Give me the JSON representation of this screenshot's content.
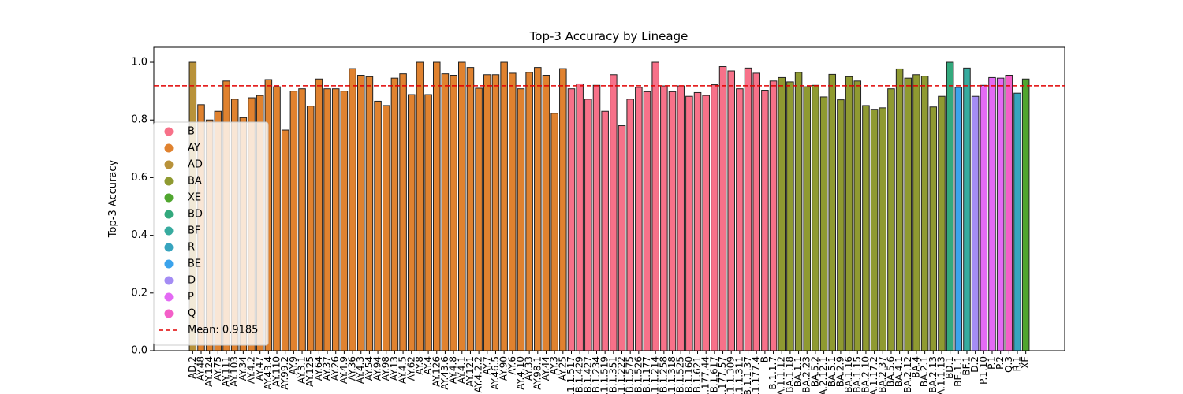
{
  "chart_data": {
    "type": "bar",
    "title": "Top-3 Accuracy by Lineage",
    "ylabel": "Top-3 Accuracy",
    "categories": [
      "AD.2",
      "AY.48",
      "AY.124",
      "AY.75",
      "AY.111",
      "AY.103",
      "AY.34",
      "AY.4.2",
      "AY.47",
      "AY.43.4",
      "AY.110",
      "AY.99.2",
      "AY.9",
      "AY.3.1",
      "AY.125",
      "AY.64",
      "AY.37",
      "AY.26",
      "AY.4.9",
      "AY.36",
      "AY.4.3",
      "AY.54",
      "AY.94",
      "AY.98",
      "AY.13",
      "AY.4.5",
      "AY.62",
      "AY.8",
      "AY.4",
      "AY.126",
      "AY.43.6",
      "AY.4.8",
      "AY.4.1",
      "AY.121",
      "AY.4.2.2",
      "AY.7",
      "AY.46.5",
      "AY.90",
      "AY.6",
      "AY.4.10",
      "AY.33",
      "AY.98.1",
      "AY.44",
      "AY.3",
      "AY.25",
      "B.1.1.517",
      "B.1.429",
      "B.1.427",
      "B.1.234",
      "B.1.1.519",
      "B.1.351",
      "B.1.1.222",
      "B.1.575",
      "B.1.526",
      "B.1.177",
      "B.1.1.214",
      "B.1.258",
      "B.1.1.318",
      "B.1.525",
      "B.1.160",
      "B.1.621",
      "B.1.177.44",
      "B.1.617",
      "B.1.177.57",
      "B.1.1.309",
      "B.1.1.311",
      "B.1.1.37",
      "B.1.177.4",
      "B",
      "B.1.1.7",
      "BA.1.1.12",
      "BA.1.18",
      "BA.1.1",
      "BA.2.23",
      "BA.5.2",
      "BA.2.12.1",
      "BA.5.1",
      "BA.2.9",
      "BA.1.16",
      "BA.1.15",
      "BA.2.10",
      "BA.1.17.2",
      "BA.2.37",
      "BA.5.6",
      "BA.4.1",
      "BA.2.12",
      "BA.4",
      "BA.2.1",
      "BA.2.13",
      "BA.1.1.13",
      "BD.1",
      "BE.1.1",
      "BF.1",
      "D.2",
      "P.1.10",
      "P.1",
      "P.2",
      "Q.3",
      "R.1",
      "XE"
    ],
    "values": [
      1.0,
      0.853,
      0.8,
      0.83,
      0.935,
      0.872,
      0.808,
      0.877,
      0.885,
      0.94,
      0.915,
      0.765,
      0.9,
      0.908,
      0.848,
      0.942,
      0.908,
      0.908,
      0.9,
      0.978,
      0.955,
      0.95,
      0.865,
      0.85,
      0.945,
      0.96,
      0.888,
      1.0,
      0.888,
      1.0,
      0.96,
      0.955,
      1.0,
      0.982,
      0.91,
      0.957,
      0.957,
      1.0,
      0.962,
      0.908,
      0.965,
      0.982,
      0.955,
      0.823,
      0.978,
      0.908,
      0.925,
      0.872,
      0.92,
      0.83,
      0.957,
      0.78,
      0.872,
      0.913,
      0.898,
      1.0,
      0.918,
      0.898,
      0.918,
      0.882,
      0.895,
      0.885,
      0.922,
      0.985,
      0.97,
      0.908,
      0.98,
      0.962,
      0.903,
      0.935,
      0.947,
      0.932,
      0.965,
      0.915,
      0.92,
      0.88,
      0.958,
      0.87,
      0.95,
      0.935,
      0.85,
      0.837,
      0.842,
      0.908,
      0.977,
      0.945,
      0.957,
      0.952,
      0.845,
      0.882,
      1.0,
      0.913,
      0.98,
      0.882,
      0.92,
      0.947,
      0.945,
      0.955,
      0.893,
      0.942
    ],
    "bar_colors": [
      "#b8923a",
      "#e0822f",
      "#e0822f",
      "#e0822f",
      "#e0822f",
      "#e0822f",
      "#e0822f",
      "#e0822f",
      "#e0822f",
      "#e0822f",
      "#e0822f",
      "#e0822f",
      "#e0822f",
      "#e0822f",
      "#e0822f",
      "#e0822f",
      "#e0822f",
      "#e0822f",
      "#e0822f",
      "#e0822f",
      "#e0822f",
      "#e0822f",
      "#e0822f",
      "#e0822f",
      "#e0822f",
      "#e0822f",
      "#e0822f",
      "#e0822f",
      "#e0822f",
      "#e0822f",
      "#e0822f",
      "#e0822f",
      "#e0822f",
      "#e0822f",
      "#e0822f",
      "#e0822f",
      "#e0822f",
      "#e0822f",
      "#e0822f",
      "#e0822f",
      "#e0822f",
      "#e0822f",
      "#e0822f",
      "#e0822f",
      "#e0822f",
      "#f77189",
      "#f77189",
      "#f77189",
      "#f77189",
      "#f77189",
      "#f77189",
      "#f77189",
      "#f77189",
      "#f77189",
      "#f77189",
      "#f77189",
      "#f77189",
      "#f77189",
      "#f77189",
      "#f77189",
      "#f77189",
      "#f77189",
      "#f77189",
      "#f77189",
      "#f77189",
      "#f77189",
      "#f77189",
      "#f77189",
      "#f77189",
      "#f77189",
      "#8f9a31",
      "#8f9a31",
      "#8f9a31",
      "#8f9a31",
      "#8f9a31",
      "#8f9a31",
      "#8f9a31",
      "#8f9a31",
      "#8f9a31",
      "#8f9a31",
      "#8f9a31",
      "#8f9a31",
      "#8f9a31",
      "#8f9a31",
      "#8f9a31",
      "#8f9a31",
      "#8f9a31",
      "#8f9a31",
      "#8f9a31",
      "#8f9a31",
      "#33a97d",
      "#3ba3ec",
      "#37ab9f",
      "#a48cf4",
      "#e36af4",
      "#e36af4",
      "#e36af4",
      "#f45fc8",
      "#37a4be",
      "#50a62f"
    ],
    "legend": [
      {
        "name": "B",
        "color": "#f77189"
      },
      {
        "name": "AY",
        "color": "#e0822f"
      },
      {
        "name": "AD",
        "color": "#b8923a"
      },
      {
        "name": "BA",
        "color": "#8f9a31"
      },
      {
        "name": "XE",
        "color": "#50a62f"
      },
      {
        "name": "BD",
        "color": "#33a97d"
      },
      {
        "name": "BF",
        "color": "#37ab9f"
      },
      {
        "name": "R",
        "color": "#37a4be"
      },
      {
        "name": "BE",
        "color": "#3ba3ec"
      },
      {
        "name": "D",
        "color": "#a48cf4"
      },
      {
        "name": "P",
        "color": "#e36af4"
      },
      {
        "name": "Q",
        "color": "#f45fc8"
      }
    ],
    "mean": 0.9185,
    "mean_label": "Mean: 0.9185",
    "mean_color": "#e00000",
    "ylim": [
      0,
      1.052
    ],
    "yticks": [
      {
        "value": 0,
        "label": "0.0"
      },
      {
        "value": 0.2,
        "label": "0.2"
      },
      {
        "value": 0.4,
        "label": "0.4"
      },
      {
        "value": 0.6,
        "label": "0.6"
      },
      {
        "value": 0.8,
        "label": "0.8"
      },
      {
        "value": 1.0,
        "label": "1.0"
      }
    ],
    "legend_loc": "lower left"
  }
}
